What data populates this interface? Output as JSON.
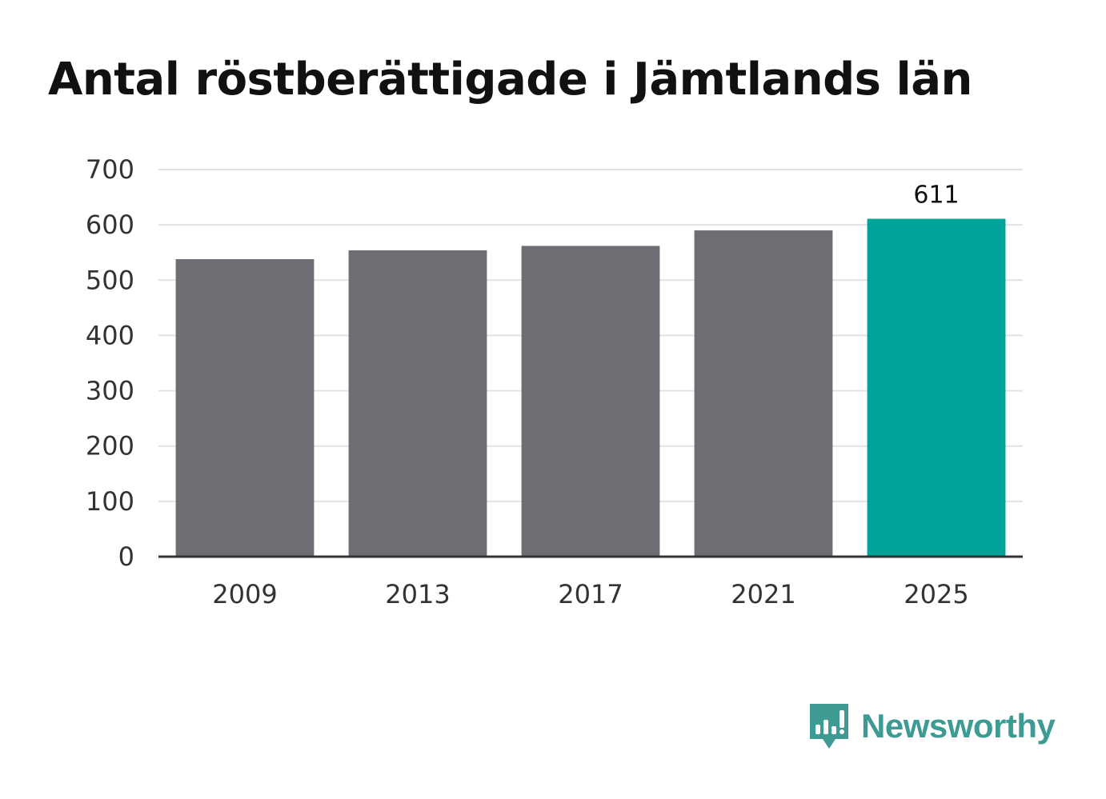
{
  "title": "Antal röstberättigade i Jämtlands län",
  "brand": {
    "name": "Newsworthy",
    "color": "#3d9b94",
    "icon": "bar-chart-speech-bubble-icon"
  },
  "colors": {
    "bar": "#6e6d73",
    "highlight": "#00a39a",
    "grid": "#e2e2e2",
    "axis": "#333333"
  },
  "chart_data": {
    "type": "bar",
    "title": "Antal röstberättigade i Jämtlands län",
    "xlabel": "",
    "ylabel": "",
    "categories": [
      "2009",
      "2013",
      "2017",
      "2021",
      "2025"
    ],
    "values": [
      538,
      554,
      562,
      590,
      611
    ],
    "highlight_index": 4,
    "data_labels": [
      null,
      null,
      null,
      null,
      "611"
    ],
    "ylim": [
      0,
      700
    ],
    "yticks": [
      "0",
      "100",
      "200",
      "300",
      "400",
      "500",
      "600",
      "700"
    ],
    "grid": true,
    "legend": false
  }
}
